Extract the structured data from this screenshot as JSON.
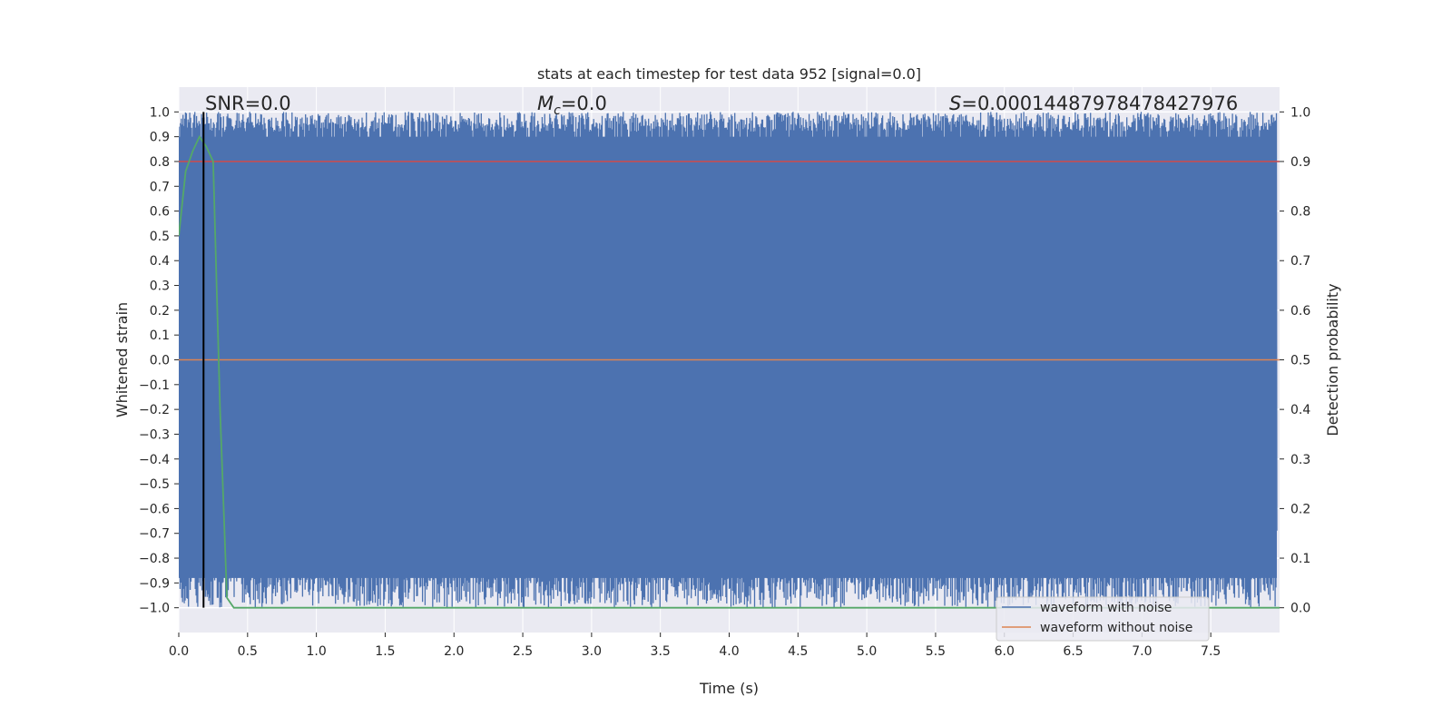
{
  "chart_data": {
    "type": "line",
    "title": "stats at each timestep for test data 952 [signal=0.0]",
    "xlabel": "Time (s)",
    "ylabel": "Whitened strain",
    "y2label": "Detection probability",
    "xlim": [
      0.0,
      8.0
    ],
    "ylim": [
      -1.1,
      1.1
    ],
    "y2lim": [
      -0.05,
      1.05
    ],
    "x_ticks": [
      0.0,
      0.5,
      1.0,
      1.5,
      2.0,
      2.5,
      3.0,
      3.5,
      4.0,
      4.5,
      5.0,
      5.5,
      6.0,
      6.5,
      7.0,
      7.5
    ],
    "x_tick_labels": [
      "0.0",
      "0.5",
      "1.0",
      "1.5",
      "2.0",
      "2.5",
      "3.0",
      "3.5",
      "4.0",
      "4.5",
      "5.0",
      "5.5",
      "6.0",
      "6.5",
      "7.0",
      "7.5"
    ],
    "y_ticks": [
      1.0,
      0.9,
      0.8,
      0.7,
      0.6,
      0.5,
      0.4,
      0.3,
      0.2,
      0.1,
      0.0,
      -0.1,
      -0.2,
      -0.3,
      -0.4,
      -0.5,
      -0.6,
      -0.7,
      -0.8,
      -0.9,
      -1.0
    ],
    "y_tick_labels": [
      "1.0",
      "0.9",
      "0.8",
      "0.7",
      "0.6",
      "0.5",
      "0.4",
      "0.3",
      "0.2",
      "0.1",
      "0.0",
      "−0.1",
      "−0.2",
      "−0.3",
      "−0.4",
      "−0.5",
      "−0.6",
      "−0.7",
      "−0.8",
      "−0.9",
      "−1.0"
    ],
    "y2_ticks": [
      1.0,
      0.9,
      0.8,
      0.7,
      0.6,
      0.5,
      0.4,
      0.3,
      0.2,
      0.1,
      0.0
    ],
    "y2_tick_labels": [
      "1.0",
      "0.9",
      "0.8",
      "0.7",
      "0.6",
      "0.5",
      "0.4",
      "0.3",
      "0.2",
      "0.1",
      "0.0"
    ],
    "grid": true,
    "legend_position": "lower-right",
    "series": [
      {
        "name": "waveform with noise",
        "color": "#4c72b0",
        "description_values": "dense noise spanning approximately -1.0 to 1.0 across 0 to 8 s"
      },
      {
        "name": "waveform without noise",
        "color": "#dd8452",
        "x": [
          0.0,
          8.0
        ],
        "y": [
          0.0,
          0.0
        ]
      },
      {
        "color": "#55a868",
        "axis": "right",
        "x": [
          0.0,
          0.05,
          0.1,
          0.15,
          0.2,
          0.25,
          0.3,
          0.35,
          0.4,
          1.0,
          2.0,
          3.0,
          4.0,
          5.0,
          6.0,
          7.0,
          8.0
        ],
        "y": [
          0.75,
          0.88,
          0.92,
          0.95,
          0.93,
          0.9,
          0.4,
          0.02,
          0.0,
          0.0,
          0.0,
          0.0,
          0.0,
          0.0,
          0.0,
          0.0,
          0.0
        ]
      },
      {
        "color": "#c44e52",
        "axis": "right",
        "x": [
          0.0,
          8.0
        ],
        "y": [
          0.9,
          0.9
        ]
      }
    ],
    "vline": {
      "x": 0.18,
      "color": "#000000"
    },
    "annotations": {
      "snr": "SNR=0.0",
      "mc_symbol": "M",
      "mc_sub": "c",
      "mc_value": "=0.0",
      "s_symbol": "S",
      "s_value": "=0.00014487978478427976"
    }
  },
  "colors": {
    "plot_background": "#eaeaf2",
    "grid": "#ffffff",
    "noise": "#4c72b0",
    "clean": "#dd8452",
    "probability": "#55a868",
    "threshold": "#c44e52"
  }
}
